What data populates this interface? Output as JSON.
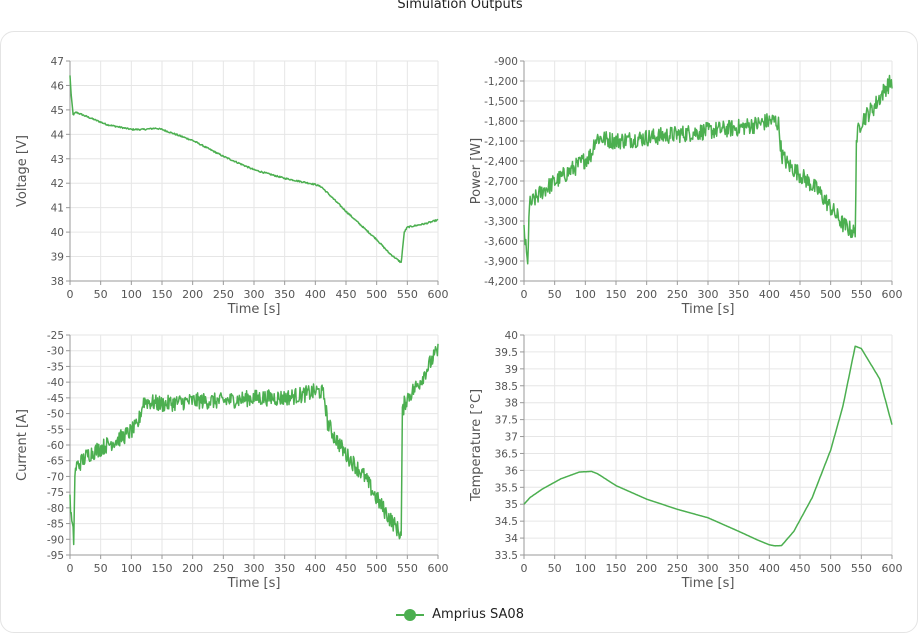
{
  "title": "Simulation Outputs",
  "legend": {
    "series_name": "Amprius SA08",
    "color": "#4caf50"
  },
  "chart_data": [
    {
      "type": "line",
      "ylabel": "Voltage [V]",
      "xlabel": "Time [s]",
      "xlim": [
        0,
        600
      ],
      "ylim": [
        38,
        47
      ],
      "xticks": [
        0,
        50,
        100,
        150,
        200,
        250,
        300,
        350,
        400,
        450,
        500,
        550,
        600
      ],
      "yticks": [
        38,
        39,
        40,
        41,
        42,
        43,
        44,
        45,
        46,
        47
      ],
      "ytick_labels": [
        "38",
        "39",
        "40",
        "41",
        "42",
        "43",
        "44",
        "45",
        "46",
        "47"
      ],
      "grid": true,
      "series": [
        {
          "name": "Amprius SA08",
          "noise": 0.03,
          "x": [
            0,
            2,
            5,
            10,
            30,
            60,
            90,
            100,
            120,
            140,
            150,
            200,
            250,
            300,
            350,
            400,
            410,
            420,
            450,
            480,
            500,
            520,
            535,
            540,
            545,
            550,
            580,
            600
          ],
          "y": [
            46.4,
            45.6,
            44.8,
            44.9,
            44.7,
            44.4,
            44.25,
            44.2,
            44.2,
            44.25,
            44.2,
            43.75,
            43.1,
            42.55,
            42.2,
            41.95,
            41.85,
            41.6,
            40.85,
            40.15,
            39.7,
            39.15,
            38.85,
            38.75,
            40.0,
            40.2,
            40.35,
            40.5
          ]
        }
      ]
    },
    {
      "type": "line",
      "ylabel": "Power [W]",
      "xlabel": "Time [s]",
      "xlim": [
        0,
        600
      ],
      "ylim": [
        -4200,
        -900
      ],
      "xticks": [
        0,
        50,
        100,
        150,
        200,
        250,
        300,
        350,
        400,
        450,
        500,
        550,
        600
      ],
      "yticks": [
        -4200,
        -3900,
        -3600,
        -3300,
        -3000,
        -2700,
        -2400,
        -2100,
        -1800,
        -1500,
        -1200,
        -900
      ],
      "ytick_labels": [
        "-4,200",
        "-3,900",
        "-3,600",
        "-3,300",
        "-3,000",
        "-2,700",
        "-2,400",
        "-2,100",
        "-1,800",
        "-1,500",
        "-1,200",
        "-900"
      ],
      "grid": true,
      "series": [
        {
          "name": "Amprius SA08",
          "noise": 130,
          "x": [
            0,
            3,
            6,
            8,
            10,
            15,
            30,
            60,
            90,
            110,
            115,
            120,
            150,
            200,
            250,
            300,
            350,
            380,
            400,
            410,
            415,
            420,
            430,
            450,
            480,
            500,
            520,
            535,
            540,
            542,
            545,
            550,
            570,
            590,
            600
          ],
          "y": [
            -3400,
            -3700,
            -4000,
            -3200,
            -3050,
            -3000,
            -2850,
            -2650,
            -2450,
            -2300,
            -2100,
            -2050,
            -2100,
            -2050,
            -2000,
            -1950,
            -1900,
            -1850,
            -1800,
            -1800,
            -1850,
            -2300,
            -2450,
            -2600,
            -2850,
            -3100,
            -3350,
            -3450,
            -3500,
            -2100,
            -1950,
            -1800,
            -1600,
            -1300,
            -1200
          ]
        }
      ]
    },
    {
      "type": "line",
      "ylabel": "Current [A]",
      "xlabel": "Time [s]",
      "xlim": [
        0,
        600
      ],
      "ylim": [
        -95,
        -25
      ],
      "xticks": [
        0,
        50,
        100,
        150,
        200,
        250,
        300,
        350,
        400,
        450,
        500,
        550,
        600
      ],
      "yticks": [
        -95,
        -90,
        -85,
        -80,
        -75,
        -70,
        -65,
        -60,
        -55,
        -50,
        -45,
        -40,
        -35,
        -30,
        -25
      ],
      "ytick_labels": [
        "-95",
        "-90",
        "-85",
        "-80",
        "-75",
        "-70",
        "-65",
        "-60",
        "-55",
        "-50",
        "-45",
        "-40",
        "-35",
        "-30",
        "-25"
      ],
      "grid": true,
      "series": [
        {
          "name": "Amprius SA08",
          "noise": 2.6,
          "x": [
            0,
            3,
            6,
            8,
            10,
            15,
            30,
            60,
            90,
            110,
            115,
            120,
            150,
            200,
            250,
            300,
            350,
            380,
            400,
            410,
            415,
            420,
            430,
            450,
            480,
            500,
            520,
            535,
            540,
            542,
            545,
            550,
            570,
            590,
            600
          ],
          "y": [
            -78,
            -85,
            -90,
            -70,
            -67,
            -66,
            -63,
            -60,
            -57,
            -54,
            -50,
            -46,
            -47,
            -46,
            -46,
            -45,
            -45,
            -44,
            -43,
            -43,
            -45,
            -53,
            -57,
            -63,
            -70,
            -77,
            -83,
            -87,
            -89,
            -50,
            -47,
            -45,
            -40,
            -33,
            -30
          ]
        }
      ]
    },
    {
      "type": "line",
      "ylabel": "Temperature [°C]",
      "xlabel": "Time [s]",
      "xlim": [
        0,
        600
      ],
      "ylim": [
        33.5,
        40
      ],
      "xticks": [
        0,
        50,
        100,
        150,
        200,
        250,
        300,
        350,
        400,
        450,
        500,
        550,
        600
      ],
      "yticks": [
        33.5,
        34,
        34.5,
        35,
        35.5,
        36,
        36.5,
        37,
        37.5,
        38,
        38.5,
        39,
        39.5,
        40
      ],
      "ytick_labels": [
        "33.5",
        "34",
        "34.5",
        "35",
        "35.5",
        "36",
        "36.5",
        "37",
        "37.5",
        "38",
        "38.5",
        "39",
        "39.5",
        "40"
      ],
      "grid": true,
      "series": [
        {
          "name": "Amprius SA08",
          "noise": 0,
          "x": [
            0,
            10,
            30,
            60,
            90,
            110,
            120,
            150,
            200,
            250,
            300,
            350,
            380,
            400,
            410,
            420,
            440,
            470,
            500,
            520,
            540,
            550,
            560,
            580,
            600
          ],
          "y": [
            35.0,
            35.2,
            35.45,
            35.75,
            35.95,
            35.97,
            35.9,
            35.55,
            35.15,
            34.85,
            34.6,
            34.2,
            33.95,
            33.8,
            33.77,
            33.78,
            34.2,
            35.2,
            36.6,
            37.9,
            39.67,
            39.6,
            39.3,
            38.7,
            37.35
          ]
        }
      ]
    }
  ]
}
